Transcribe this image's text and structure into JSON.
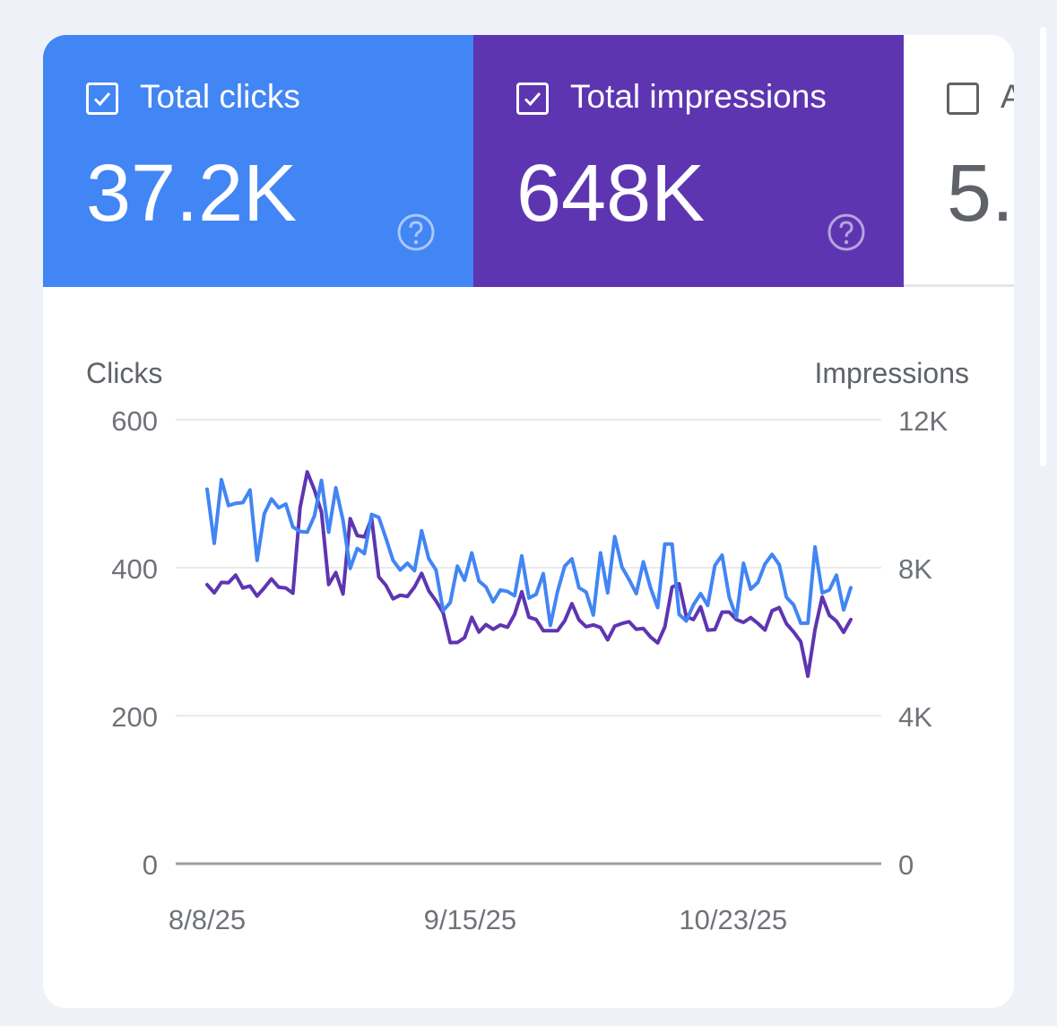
{
  "metrics": [
    {
      "label": "Total clicks",
      "value": "37.2K",
      "checked": true,
      "color": "#4285f4"
    },
    {
      "label": "Total impressions",
      "value": "648K",
      "checked": true,
      "color": "#5e35b1"
    },
    {
      "label": "A",
      "value": "5.",
      "checked": false,
      "color": "#ffffff"
    }
  ],
  "icons": {
    "checkbox_checked": "check-icon",
    "help": "help-circle-icon"
  },
  "chart_data": {
    "type": "line",
    "left_axis": {
      "label": "Clicks",
      "ticks": [
        "600",
        "400",
        "200",
        "0"
      ],
      "range": [
        0,
        600
      ]
    },
    "right_axis": {
      "label": "Impressions",
      "ticks": [
        "12K",
        "8K",
        "4K",
        "0"
      ],
      "range": [
        0,
        12000
      ]
    },
    "x_ticks": [
      "8/8/25",
      "9/15/25",
      "10/23/25"
    ],
    "x_range": [
      "2025-08-08",
      "2025-11-09"
    ],
    "grid": true,
    "series": [
      {
        "axis": "left",
        "color": "#4285f4",
        "values": [
          506,
          433,
          519,
          484,
          487,
          488,
          505,
          410,
          473,
          493,
          481,
          486,
          455,
          449,
          448,
          470,
          518,
          448,
          508,
          464,
          399,
          426,
          419,
          472,
          468,
          440,
          410,
          397,
          406,
          396,
          450,
          412,
          397,
          342,
          353,
          402,
          383,
          420,
          382,
          374,
          354,
          370,
          368,
          362,
          416,
          359,
          364,
          392,
          322,
          368,
          402,
          412,
          373,
          367,
          336,
          420,
          366,
          442,
          401,
          384,
          365,
          408,
          373,
          346,
          432,
          432,
          337,
          328,
          350,
          365,
          349,
          403,
          417,
          360,
          333,
          406,
          371,
          380,
          405,
          418,
          404,
          360,
          350,
          325,
          325,
          428,
          366,
          370,
          390,
          343,
          373
        ]
      },
      {
        "axis": "right",
        "color": "#5e35b1",
        "values": [
          7543,
          7322,
          7602,
          7595,
          7798,
          7451,
          7505,
          7233,
          7458,
          7697,
          7475,
          7453,
          7311,
          9622,
          10588,
          10103,
          9502,
          7547,
          7869,
          7289,
          9329,
          8871,
          8833,
          9341,
          7751,
          7527,
          7158,
          7256,
          7224,
          7480,
          7847,
          7374,
          7102,
          6780,
          5976,
          5977,
          6108,
          6660,
          6260,
          6462,
          6335,
          6450,
          6391,
          6740,
          7351,
          6663,
          6601,
          6297,
          6297,
          6297,
          6566,
          7029,
          6589,
          6404,
          6453,
          6386,
          6051,
          6421,
          6492,
          6541,
          6336,
          6356,
          6129,
          5968,
          6399,
          7475,
          7565,
          6678,
          6600,
          6944,
          6312,
          6328,
          6800,
          6800,
          6599,
          6520,
          6653,
          6498,
          6316,
          6837,
          6920,
          6485,
          6265,
          6002,
          5066,
          6333,
          7210,
          6713,
          6554,
          6255,
          6600
        ]
      }
    ]
  }
}
